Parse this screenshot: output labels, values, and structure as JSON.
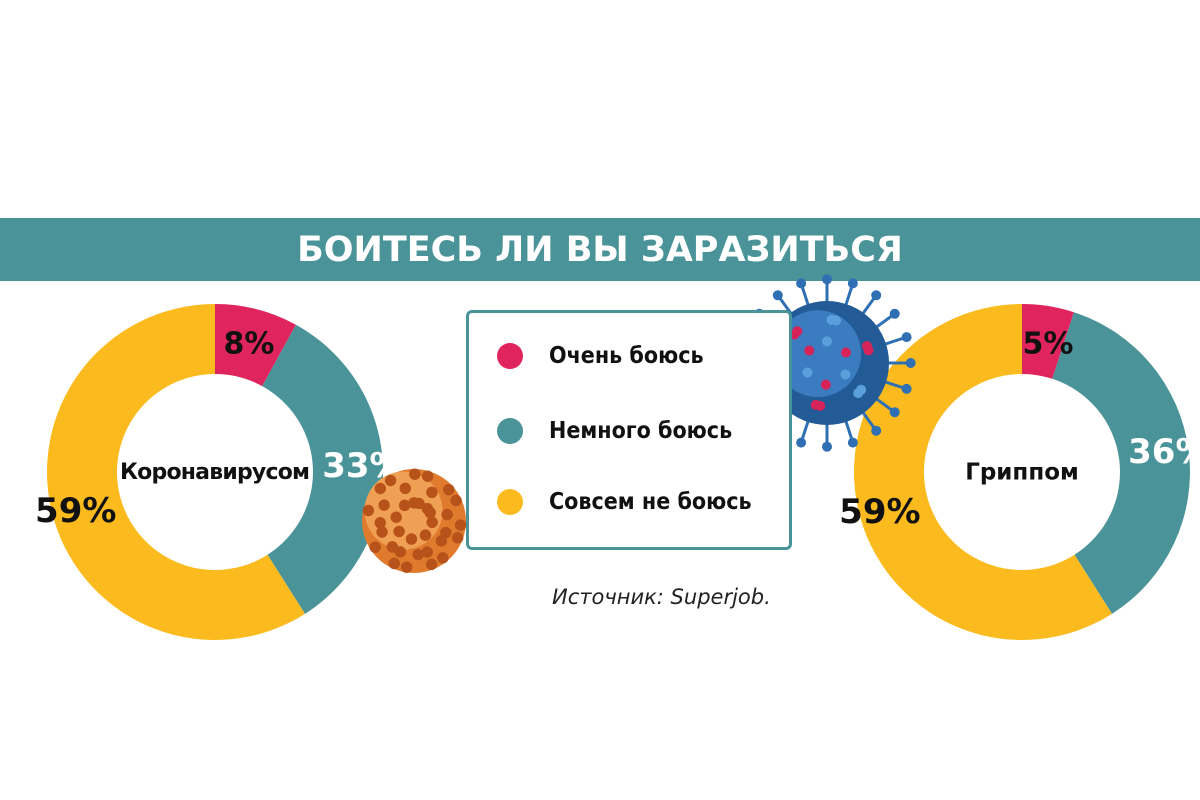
{
  "title": "БОИТЕСЬ ЛИ ВЫ ЗАРАЗИТЬСЯ",
  "source": "Источник: Superjob.",
  "colors": {
    "banner": "#4a9499",
    "very_afraid": "#e0245e",
    "somewhat_afraid": "#4a9499",
    "not_afraid": "#fbbb1e"
  },
  "icons": [
    "coronavirus-particle-icon",
    "flu-virus-particle-icon"
  ],
  "chart_data": [
    {
      "type": "pie",
      "title": "Коронавирусом",
      "categories": [
        "Очень боюсь",
        "Немного боюсь",
        "Совсем не боюсь"
      ],
      "values": [
        8,
        33,
        59
      ],
      "labels": [
        "8%",
        "33%",
        "59%"
      ],
      "colors": [
        "#e0245e",
        "#4a9499",
        "#fbbb1e"
      ]
    },
    {
      "type": "pie",
      "title": "Гриппом",
      "categories": [
        "Очень боюсь",
        "Немного боюсь",
        "Совсем не боюсь"
      ],
      "values": [
        5,
        36,
        59
      ],
      "labels": [
        "5%",
        "36%",
        "59%"
      ],
      "colors": [
        "#e0245e",
        "#4a9499",
        "#fbbb1e"
      ]
    }
  ],
  "legend": [
    {
      "label": "Очень боюсь",
      "color": "#e0245e"
    },
    {
      "label": "Немного боюсь",
      "color": "#4a9499"
    },
    {
      "label": "Совсем не боюсь",
      "color": "#fbbb1e"
    }
  ]
}
